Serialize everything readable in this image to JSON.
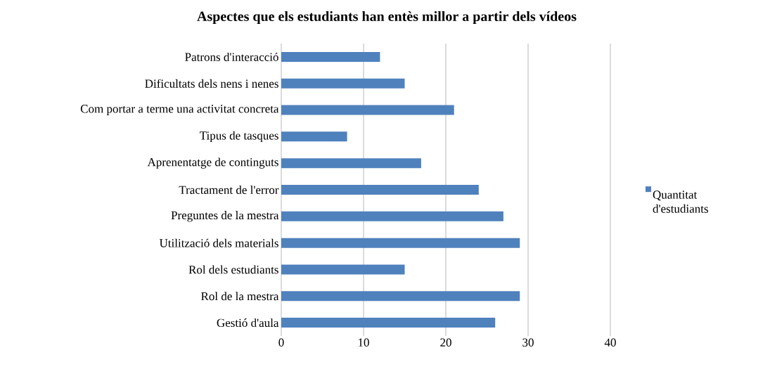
{
  "chart_data": {
    "type": "bar",
    "orientation": "horizontal",
    "title": "Aspectes que els estudiants han entès millor a partir dels vídeos",
    "categories": [
      "Patrons d'interacció",
      "Dificultats dels nens i nenes",
      "Com portar a terme una activitat concreta",
      "Tipus de tasques",
      "Aprenentatge de continguts",
      "Tractament de l'error",
      "Preguntes de la mestra",
      "Utilització dels materials",
      "Rol dels estudiants",
      "Rol de la mestra",
      "Gestió d'aula"
    ],
    "series": [
      {
        "name": "Quantitat d'estudiants",
        "color": "#4f81bd",
        "values": [
          12,
          15,
          21,
          8,
          17,
          24,
          27,
          29,
          15,
          29,
          26
        ]
      }
    ],
    "xlim": [
      0,
      40
    ],
    "xticks": [
      0,
      10,
      20,
      30,
      40
    ],
    "grid": "x",
    "legend": "right"
  }
}
